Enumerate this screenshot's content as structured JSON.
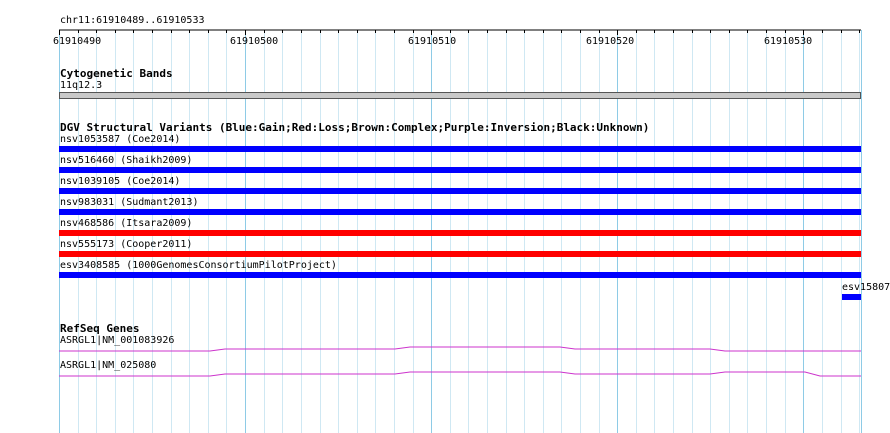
{
  "location": "chr11:61910489..61910533",
  "ruler": {
    "start": 61910490,
    "end": 61910533,
    "ticks": [
      "61910490",
      "61910500",
      "61910510",
      "61910520",
      "61910530"
    ]
  },
  "tracks": {
    "cytobands": {
      "title": "Cytogenetic Bands",
      "band": "11q12.3"
    },
    "dgv": {
      "title": "DGV Structural Variants (Blue:Gain;Red:Loss;Brown:Complex;Purple:Inversion;Black:Unknown)",
      "colors": {
        "gain": "#0000ff",
        "loss": "#ff0000"
      },
      "variants": [
        {
          "label": "nsv1053587 (Coe2014)",
          "type": "gain"
        },
        {
          "label": "nsv516460 (Shaikh2009)",
          "type": "gain"
        },
        {
          "label": "nsv1039105 (Coe2014)",
          "type": "gain"
        },
        {
          "label": "nsv983031 (Sudmant2013)",
          "type": "gain"
        },
        {
          "label": "nsv468586 (Itsara2009)",
          "type": "loss"
        },
        {
          "label": "nsv555173 (Cooper2011)",
          "type": "loss"
        },
        {
          "label": "esv3408585 (1000GenomesConsortiumPilotProject)",
          "type": "gain"
        }
      ],
      "partial": {
        "label": "esv15807",
        "type": "gain"
      }
    },
    "refseq": {
      "title": "RefSeq Genes",
      "color": "#cc33cc",
      "genes": [
        {
          "label": "ASRGL1|NM_001083926"
        },
        {
          "label": "ASRGL1|NM_025080"
        }
      ]
    }
  }
}
